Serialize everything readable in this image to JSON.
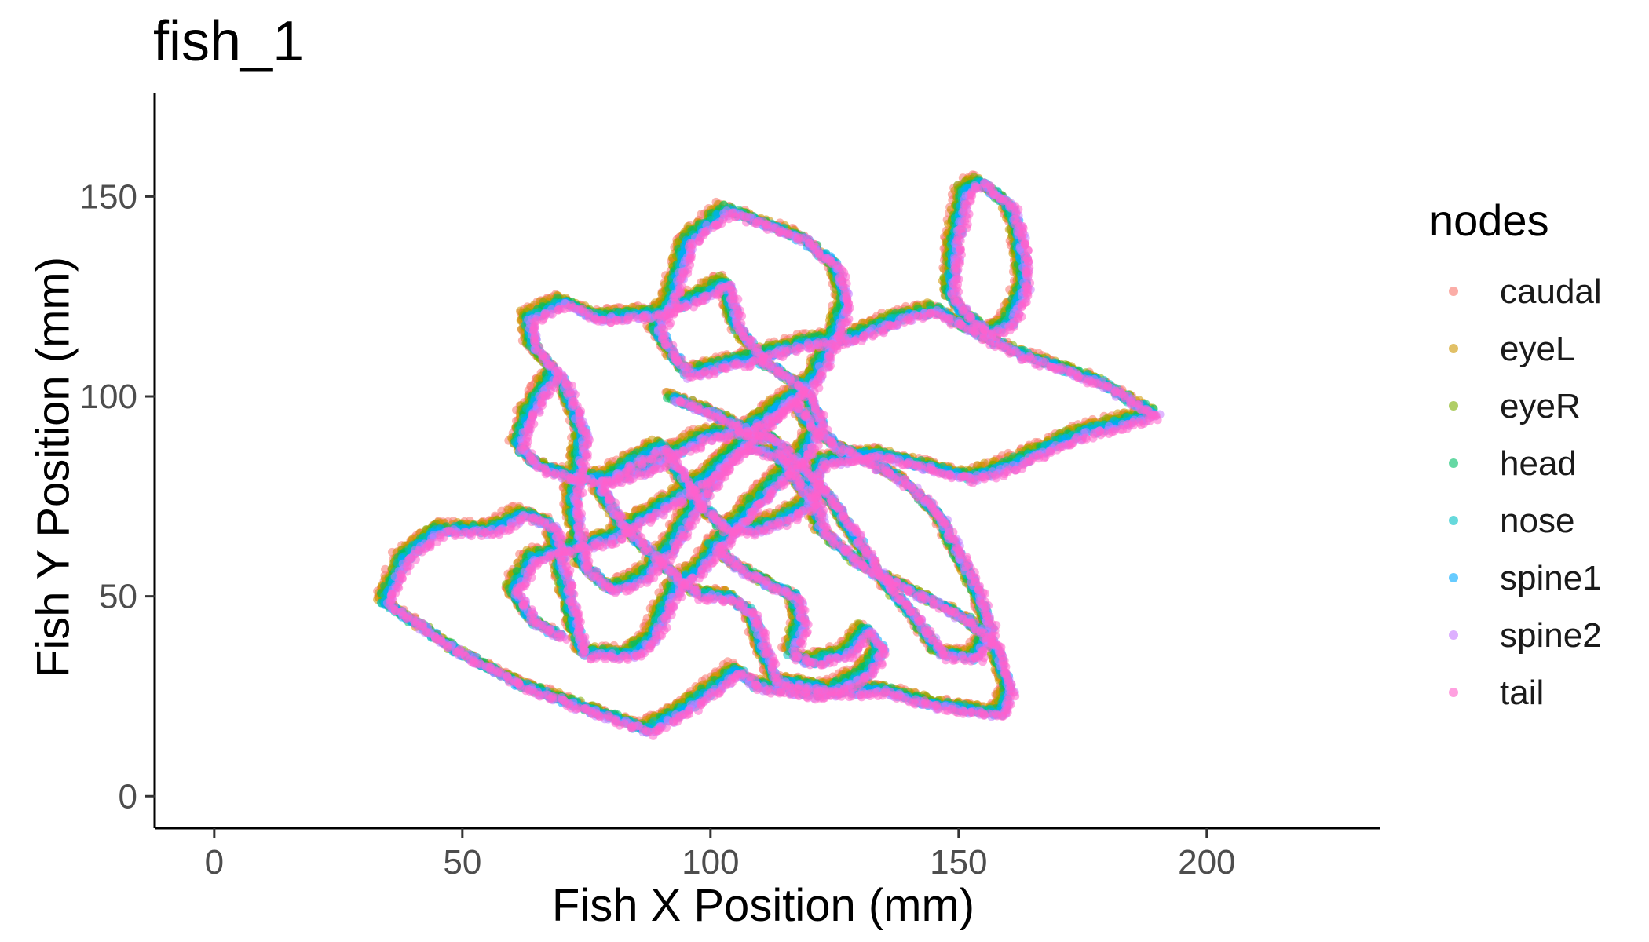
{
  "chart_data": {
    "type": "scatter",
    "title": "fish_1",
    "xlabel": "Fish X Position (mm)",
    "ylabel": "Fish Y Position (mm)",
    "xlim": [
      -12,
      235
    ],
    "ylim": [
      -8,
      176
    ],
    "x_ticks": [
      0,
      50,
      100,
      150,
      200
    ],
    "y_ticks": [
      0,
      50,
      100,
      150
    ],
    "grid": false,
    "legend": {
      "title": "nodes",
      "position": "right"
    },
    "series": [
      {
        "name": "caudal",
        "color": "#F8766D"
      },
      {
        "name": "eyeL",
        "color": "#CD9600"
      },
      {
        "name": "eyeR",
        "color": "#7CAE00"
      },
      {
        "name": "head",
        "color": "#00BE67"
      },
      {
        "name": "nose",
        "color": "#00BFC4"
      },
      {
        "name": "spine1",
        "color": "#00A9FF"
      },
      {
        "name": "spine2",
        "color": "#C77CFF"
      },
      {
        "name": "tail",
        "color": "#FF61CC"
      }
    ],
    "trajectory": [
      [
        34,
        49
      ],
      [
        40,
        44
      ],
      [
        48,
        37
      ],
      [
        62,
        28
      ],
      [
        75,
        22
      ],
      [
        87,
        17
      ],
      [
        93,
        21
      ],
      [
        100,
        27
      ],
      [
        105,
        32
      ],
      [
        109,
        28
      ],
      [
        120,
        26
      ],
      [
        134,
        27
      ],
      [
        146,
        23
      ],
      [
        158,
        21
      ],
      [
        160,
        27
      ],
      [
        157,
        38
      ],
      [
        152,
        44
      ],
      [
        143,
        50
      ],
      [
        130,
        58
      ],
      [
        122,
        67
      ],
      [
        120,
        78
      ],
      [
        122,
        84
      ],
      [
        133,
        86
      ],
      [
        146,
        82
      ],
      [
        152,
        80
      ],
      [
        160,
        83
      ],
      [
        174,
        91
      ],
      [
        189,
        96
      ],
      [
        178,
        104
      ],
      [
        162,
        111
      ],
      [
        152,
        117
      ],
      [
        145,
        122
      ],
      [
        138,
        120
      ],
      [
        128,
        115
      ],
      [
        120,
        114
      ],
      [
        108,
        110
      ],
      [
        95,
        106
      ],
      [
        92,
        111
      ],
      [
        89,
        117
      ],
      [
        92,
        125
      ],
      [
        95,
        139
      ],
      [
        103,
        147
      ],
      [
        118,
        140
      ],
      [
        125,
        133
      ],
      [
        127,
        124
      ],
      [
        124,
        113
      ],
      [
        120,
        104
      ],
      [
        112,
        95
      ],
      [
        102,
        83
      ],
      [
        96,
        72
      ],
      [
        92,
        63
      ],
      [
        86,
        55
      ],
      [
        80,
        52
      ],
      [
        74,
        58
      ],
      [
        72,
        74
      ],
      [
        74,
        91
      ],
      [
        70,
        104
      ],
      [
        64,
        113
      ],
      [
        63,
        120
      ],
      [
        70,
        124
      ],
      [
        77,
        120
      ],
      [
        88,
        121
      ],
      [
        97,
        125
      ],
      [
        103,
        129
      ],
      [
        105,
        118
      ],
      [
        110,
        109
      ],
      [
        118,
        103
      ],
      [
        122,
        94
      ],
      [
        118,
        85
      ],
      [
        113,
        79
      ],
      [
        108,
        73
      ],
      [
        102,
        64
      ],
      [
        98,
        58
      ],
      [
        93,
        53
      ],
      [
        90,
        46
      ],
      [
        88,
        40
      ],
      [
        84,
        36
      ],
      [
        74,
        36
      ],
      [
        72,
        45
      ],
      [
        70,
        56
      ],
      [
        68,
        68
      ],
      [
        62,
        71
      ],
      [
        56,
        67
      ],
      [
        45,
        67
      ],
      [
        38,
        60
      ],
      [
        34,
        49
      ]
    ],
    "trajectory_2": [
      [
        154,
        154
      ],
      [
        160,
        148
      ],
      [
        162,
        140
      ],
      [
        163,
        128
      ],
      [
        160,
        119
      ],
      [
        156,
        116
      ],
      [
        151,
        121
      ],
      [
        148,
        126
      ],
      [
        149,
        139
      ],
      [
        151,
        152
      ],
      [
        154,
        154
      ]
    ],
    "trajectory_3": [
      [
        92,
        100
      ],
      [
        100,
        96
      ],
      [
        107,
        92
      ],
      [
        116,
        100
      ],
      [
        120,
        93
      ],
      [
        125,
        88
      ],
      [
        132,
        84
      ],
      [
        140,
        78
      ],
      [
        146,
        70
      ],
      [
        150,
        60
      ],
      [
        154,
        50
      ],
      [
        156,
        42
      ],
      [
        153,
        35
      ],
      [
        146,
        36
      ],
      [
        141,
        45
      ],
      [
        136,
        52
      ],
      [
        130,
        63
      ],
      [
        125,
        73
      ],
      [
        121,
        79
      ],
      [
        117,
        84
      ],
      [
        112,
        90
      ],
      [
        105,
        92
      ],
      [
        98,
        90
      ],
      [
        92,
        86
      ],
      [
        86,
        82
      ],
      [
        80,
        80
      ],
      [
        72,
        80
      ],
      [
        65,
        83
      ],
      [
        61,
        88
      ],
      [
        63,
        96
      ],
      [
        68,
        106
      ]
    ],
    "trajectory_4": [
      [
        100,
        63
      ],
      [
        106,
        57
      ],
      [
        112,
        53
      ],
      [
        117,
        50
      ],
      [
        118,
        43
      ],
      [
        116,
        36
      ],
      [
        120,
        34
      ],
      [
        127,
        36
      ],
      [
        131,
        42
      ],
      [
        134,
        37
      ],
      [
        131,
        31
      ],
      [
        124,
        27
      ],
      [
        113,
        29
      ],
      [
        110,
        38
      ],
      [
        108,
        46
      ],
      [
        104,
        50
      ],
      [
        97,
        51
      ],
      [
        92,
        56
      ],
      [
        87,
        62
      ],
      [
        82,
        68
      ],
      [
        79,
        74
      ],
      [
        77,
        78
      ],
      [
        84,
        84
      ],
      [
        90,
        88
      ],
      [
        94,
        80
      ],
      [
        97,
        74
      ],
      [
        102,
        68
      ],
      [
        108,
        67
      ],
      [
        115,
        70
      ],
      [
        120,
        74
      ],
      [
        113,
        86
      ],
      [
        106,
        88
      ],
      [
        99,
        80
      ],
      [
        93,
        75
      ],
      [
        86,
        70
      ],
      [
        80,
        65
      ],
      [
        73,
        63
      ],
      [
        64,
        60
      ],
      [
        60,
        52
      ],
      [
        64,
        44
      ],
      [
        70,
        40
      ]
    ]
  }
}
